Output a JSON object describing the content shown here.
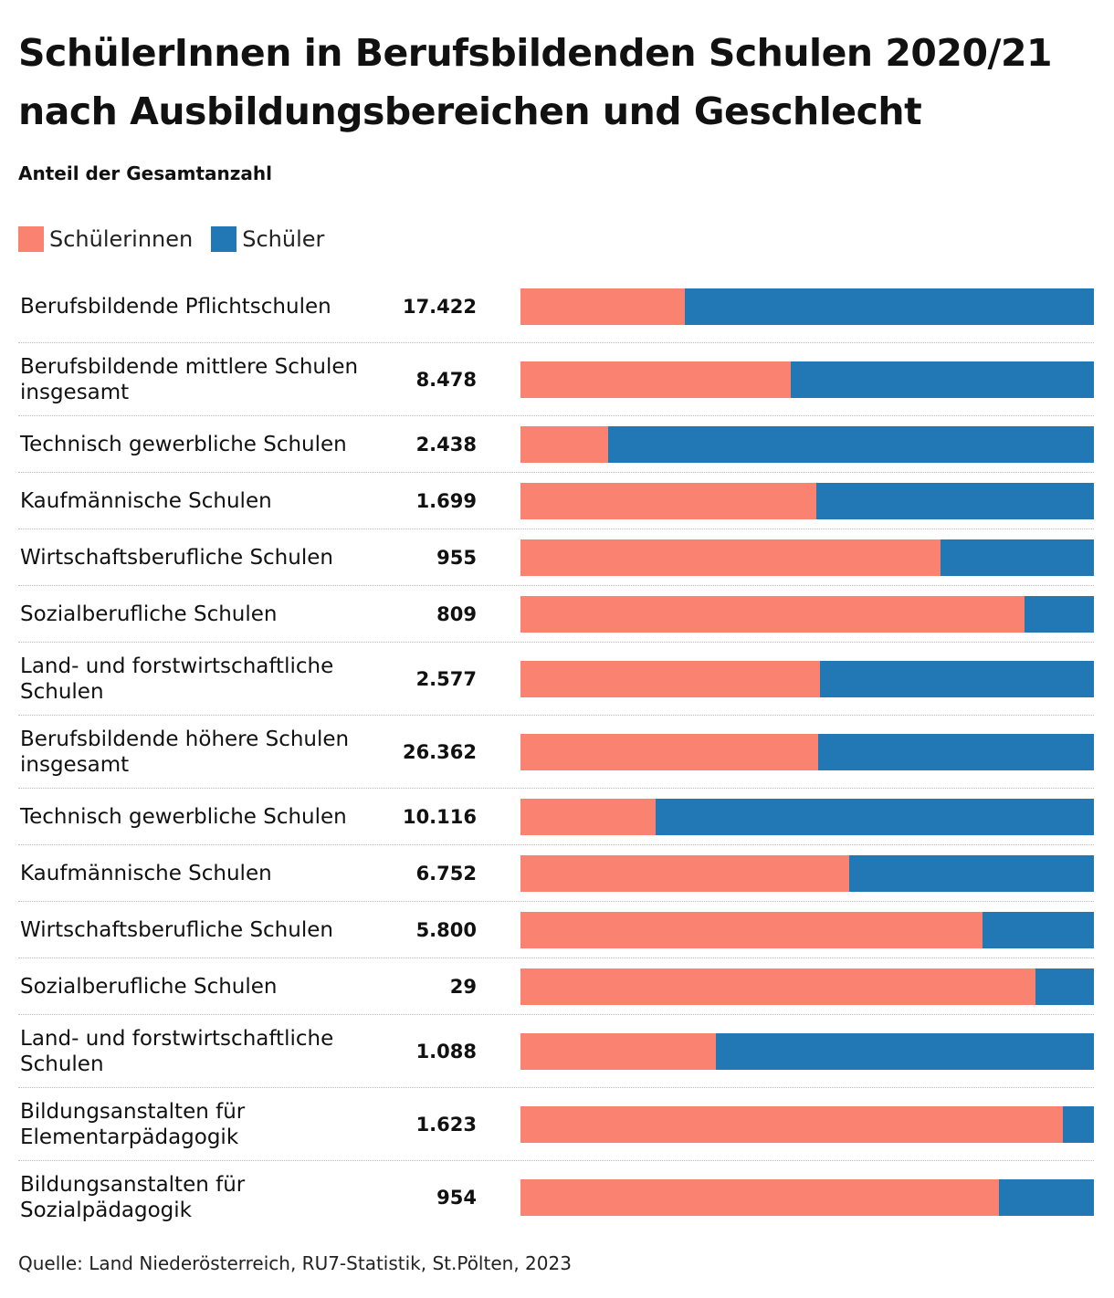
{
  "chart_data": {
    "type": "bar",
    "orientation": "horizontal",
    "stacked": "percent",
    "title": "SchülerInnen in Berufsbildenden Schulen 2020/21 nach Ausbildungsbereichen und Geschlecht",
    "subtitle": "Anteil der Gesamtanzahl",
    "legend": [
      {
        "name": "Schülerinnen",
        "color": "#FA8270"
      },
      {
        "name": "Schüler",
        "color": "#2178B4"
      }
    ],
    "categories": [
      "Berufsbildende Pflichtschulen",
      "Berufsbildende mittlere Schulen insgesamt",
      "Technisch gewerbliche Schulen",
      "Kaufmännische Schulen",
      "Wirtschaftsberufliche Schulen",
      "Sozialberufliche Schulen",
      "Land- und forstwirtschaftliche Schulen",
      "Berufsbildende höhere Schulen insgesamt",
      "Technisch gewerbliche Schulen",
      "Kaufmännische Schulen",
      "Wirtschaftsberufliche Schulen",
      "Sozialberufliche Schulen",
      "Land- und forstwirtschaftliche Schulen",
      "Bildungsanstalten für Elementarpädagogik",
      "Bildungsanstalten für Sozialpädagogik"
    ],
    "totals": [
      "17.422",
      "8.478",
      "2.438",
      "1.699",
      "955",
      "809",
      "2.577",
      "26.362",
      "10.116",
      "6.752",
      "5.800",
      "29",
      "1.088",
      "1.623",
      "954"
    ],
    "series": [
      {
        "name": "Schülerinnen",
        "values": [
          0.287,
          0.471,
          0.153,
          0.516,
          0.733,
          0.879,
          0.522,
          0.519,
          0.236,
          0.573,
          0.806,
          0.898,
          0.341,
          0.946,
          0.834
        ]
      },
      {
        "name": "Schüler",
        "values": [
          0.713,
          0.529,
          0.847,
          0.484,
          0.267,
          0.121,
          0.478,
          0.481,
          0.764,
          0.427,
          0.194,
          0.102,
          0.659,
          0.054,
          0.166
        ]
      }
    ],
    "xlim": [
      0,
      1
    ],
    "grid": false,
    "legend_placement": "top-left"
  },
  "source": "Quelle: Land Niederösterreich, RU7-Statistik, St.Pölten, 2023"
}
